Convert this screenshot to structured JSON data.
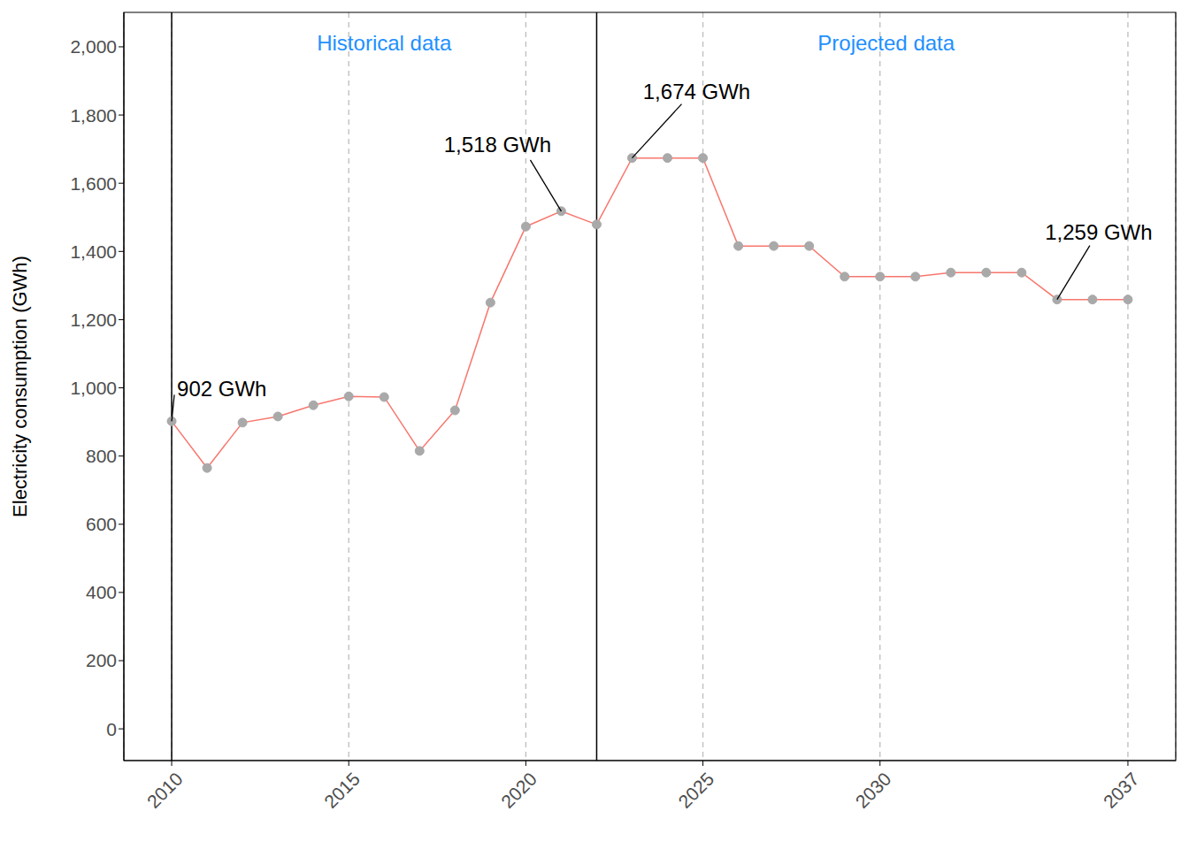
{
  "chart_data": {
    "type": "line",
    "y_label": "Electricity consumption (GWh)",
    "x": [
      2010,
      2011,
      2012,
      2013,
      2014,
      2015,
      2016,
      2017,
      2018,
      2019,
      2020,
      2021,
      2022,
      2023,
      2024,
      2025,
      2026,
      2027,
      2028,
      2029,
      2030,
      2031,
      2032,
      2033,
      2034,
      2035,
      2036,
      2037
    ],
    "values": [
      902,
      765,
      898,
      916,
      949,
      975,
      973,
      815,
      934,
      1250,
      1473,
      1518,
      1479,
      1674,
      1674,
      1674,
      1416,
      1416,
      1416,
      1326,
      1326,
      1326,
      1338,
      1338,
      1338,
      1259,
      1259,
      1259
    ],
    "color": "#F8766D",
    "marker": "circle",
    "marker_color": "#A9A9A9",
    "xlim": [
      2008.65,
      2038.35
    ],
    "xticks": [
      2010,
      2015,
      2020,
      2025,
      2030,
      2037
    ],
    "ylim": [
      -93,
      2101
    ],
    "yticks": [
      0,
      200,
      400,
      600,
      800,
      {
        "value": 1000,
        "label": "1,000"
      },
      {
        "value": 1200,
        "label": "1,200"
      },
      {
        "value": 1400,
        "label": "1,400"
      },
      {
        "value": 1600,
        "label": "1,600"
      },
      {
        "value": 1800,
        "label": "1,800"
      },
      {
        "value": 2000,
        "label": "2,000"
      }
    ],
    "grid": "x",
    "sections": [
      {
        "label": "Historical data",
        "start": 2010,
        "color": "#1E90FF"
      },
      {
        "label": "Projected data",
        "start": 2022,
        "color": "#1E90FF"
      }
    ],
    "annotations": [
      {
        "x": 2010,
        "y": 902,
        "text": "902 GWh"
      },
      {
        "x": 2021,
        "y": 1518,
        "text": "1,518 GWh"
      },
      {
        "x": 2023,
        "y": 1674,
        "text": "1,674 GWh"
      },
      {
        "x": 2035,
        "y": 1259,
        "text": "1,259 GWh"
      }
    ]
  }
}
